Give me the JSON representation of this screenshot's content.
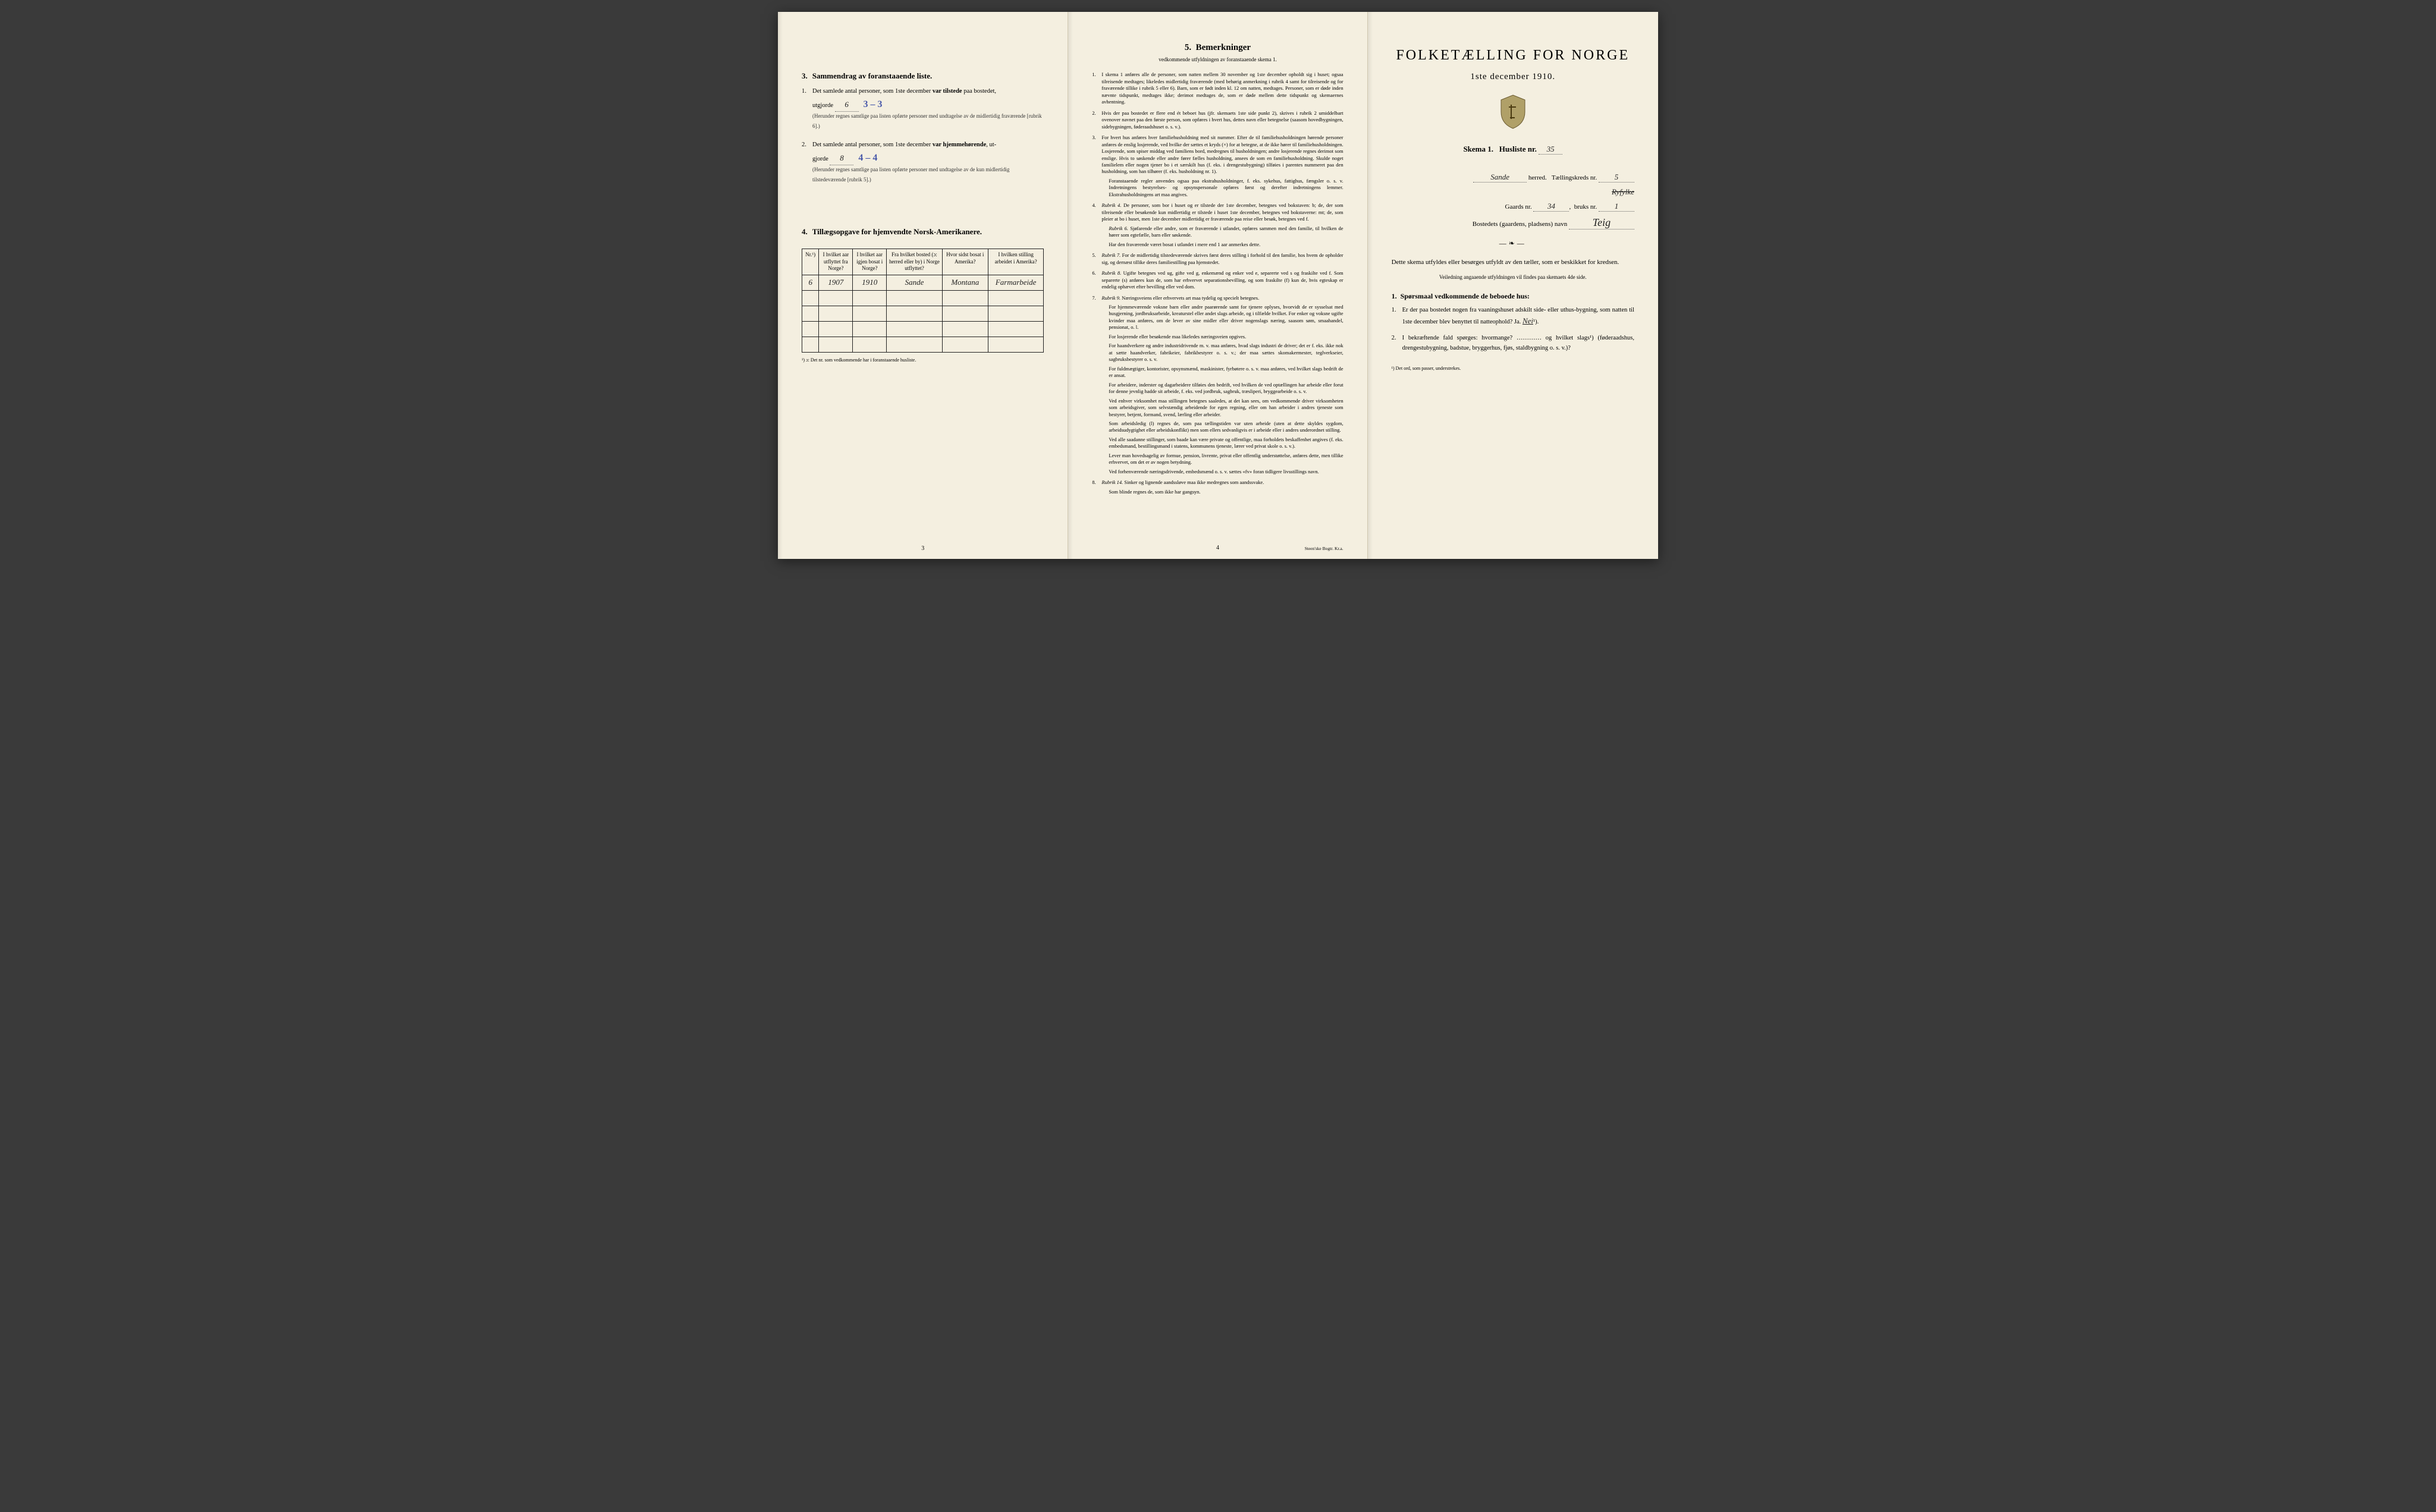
{
  "colors": {
    "paper": "#f4efe0",
    "ink": "#1a1a1a",
    "hand_blue": "#4a5aaa",
    "hand_black": "#222222",
    "border": "#222222",
    "shadow": "#2a2a2a"
  },
  "typography": {
    "body_pt": 10.5,
    "small_pt": 9,
    "title_pt": 24,
    "family": "Georgia / Times serif",
    "hand_family": "cursive script"
  },
  "left": {
    "section3": {
      "num": "3.",
      "title": "Sammendrag av foranstaaende liste.",
      "items": [
        {
          "idx": "1.",
          "text_a": "Det samlede antal personer, som 1ste december ",
          "bold_a": "var tilstede",
          "text_b": " paa bostedet,",
          "line2_a": "utgjorde ",
          "value": "6",
          "value_blue": "3 – 3",
          "paren": "(Herunder regnes samtlige paa listen opførte personer med undtagelse av de midlertidig fraværende [rubrik 6].)"
        },
        {
          "idx": "2.",
          "text_a": "Det samlede antal personer, som 1ste december ",
          "bold_a": "var hjemmehørende",
          "text_b": ", ut-",
          "line2_a": "gjorde ",
          "value": "8",
          "value_blue": "4 – 4",
          "paren": "(Herunder regnes samtlige paa listen opførte personer med undtagelse av de kun midlertidig tilstedeværende [rubrik 5].)"
        }
      ]
    },
    "section4": {
      "num": "4.",
      "title": "Tillægsopgave for hjemvendte Norsk-Amerikanere.",
      "table": {
        "columns": [
          "Nr.¹)",
          "I hvilket aar utflyttet fra Norge?",
          "I hvilket aar igjen bosat i Norge?",
          "Fra hvilket bosted (ɔ: herred eller by) i Norge utflyttet?",
          "Hvor sidst bosat i Amerika?",
          "I hvilken stilling arbeidet i Amerika?"
        ],
        "col_widths_pct": [
          7,
          14,
          14,
          23,
          19,
          23
        ],
        "rows": [
          [
            "6",
            "1907",
            "1910",
            "Sande",
            "Montana",
            "Farmarbeide"
          ],
          [
            "",
            "",
            "",
            "",
            "",
            ""
          ],
          [
            "",
            "",
            "",
            "",
            "",
            ""
          ],
          [
            "",
            "",
            "",
            "",
            "",
            ""
          ],
          [
            "",
            "",
            "",
            "",
            "",
            ""
          ]
        ]
      },
      "footnote": "¹) ɔ: Det nr. som vedkommende har i foranstaaende husliste."
    },
    "page_number": "3"
  },
  "middle": {
    "num": "5.",
    "title": "Bemerkninger",
    "subtitle": "vedkommende utfyldningen av foranstaaende skema 1.",
    "remarks": [
      {
        "n": "1.",
        "text": "I skema 1 anføres alle de personer, som natten mellem 30 november og 1ste december opholdt sig i huset; ogsaa tilreisende medtages; likeledes midlertidig fraværende (med behørig anmerkning i rubrik 4 samt for tilreisende og for fraværende tillike i rubrik 5 eller 6). Barn, som er født inden kl. 12 om natten, medtages. Personer, som er døde inden nævnte tidspunkt, medtages ikke; derimot medtages de, som er døde mellem dette tidspunkt og skemaernes avhentning."
      },
      {
        "n": "2.",
        "text": "Hvis der paa bostedet er flere end ét beboet hus (jfr. skemaets 1ste side punkt 2), skrives i rubrik 2 umiddelbart ovenover navnet paa den første person, som opføres i hvert hus, dettes navn eller betegnelse (saasom hovedbygningen, sidebygningen, føderaadshuset o. s. v.)."
      },
      {
        "n": "3.",
        "text": "For hvert hus anføres hver familiehusholdning med sit nummer. Efter de til familiehusholdningen hørende personer anføres de enslig losjerende, ved hvilke der sættes et kryds (×) for at betegne, at de ikke hører til familiehusholdningen. Losjerende, som spiser middag ved familiens bord, medregnes til husholdningen; andre losjerende regnes derimot som enslige. Hvis to søskende eller andre fører fælles husholdning, ansees de som en familiehusholdning. Skulde noget familielem eller nogen tjener bo i et særskilt hus (f. eks. i drengestubygning) tilføies i parentes nummeret paa den husholdning, som han tilhører (f. eks. husholdning nr. 1).",
        "para2": "Foranstaaende regler anvendes ogsaa paa ekstrahusholdninger, f. eks. sykehus, fattighus, fængsler o. s. v. Indretningens bestyrelses- og opsynspersonale opføres først og derefter indretningens lemmer. Ekstrahusholdningens art maa angives."
      },
      {
        "n": "4.",
        "rubrik": "Rubrik 4.",
        "text": "De personer, som bor i huset og er tilstede der 1ste december, betegnes ved bokstaven: b; de, der som tilreisende eller besøkende kun midlertidig er tilstede i huset 1ste december, betegnes ved bokstaverne: mt; de, som pleier at bo i huset, men 1ste december midlertidig er fraværende paa reise eller besøk, betegnes ved f.",
        "para2_rubrik": "Rubrik 6.",
        "para2": "Sjøfarende eller andre, som er fraværende i utlandet, opføres sammen med den familie, til hvilken de hører som egtefælle, barn eller søskende.",
        "para3": "Har den fraværende været bosat i utlandet i mere end 1 aar anmerkes dette."
      },
      {
        "n": "5.",
        "rubrik": "Rubrik 7.",
        "text": "For de midlertidig tilstedeværende skrives først deres stilling i forhold til den familie, hos hvem de opholder sig, og dernæst tillike deres familiestilling paa hjemstedet."
      },
      {
        "n": "6.",
        "rubrik": "Rubrik 8.",
        "text": "Ugifte betegnes ved ug, gifte ved g, enkemænd og enker ved e, separerte ved s og fraskilte ved f. Som separerte (s) anføres kun de, som har erhvervet separationsbevilling, og som fraskilte (f) kun de, hvis egteskap er endelig ophævet efter bevilling eller ved dom."
      },
      {
        "n": "7.",
        "rubrik": "Rubrik 9.",
        "text": "Næringsveiens eller erhvervets art maa tydelig og specielt betegnes.",
        "paras": [
          "For hjemmeværende voksne barn eller andre paarørende samt for tjenere oplyses, hvorvidt de er sysselsat med husgjerning, jordbruksarbeide, kreaturstel eller andet slags arbeide, og i tilfælde hvilket. For enker og voksne ugifte kvinder maa anføres, om de lever av sine midler eller driver nogenslags næring, saasom søm, smaahandel, pensionat, o. l.",
          "For losjerende eller besøkende maa likeledes næringsveien opgives.",
          "For haandverkere og andre industridrivende m. v. maa anføres, hvad slags industri de driver; det er f. eks. ikke nok at sætte haandverker, fabrikeier, fabrikbestyrer o. s. v.; der maa sættes skomakermester, teglverkseier, sagbruksbestyrer o. s. v.",
          "For fuldmægtiger, kontorister, opsynsmænd, maskinister, fyrbøtere o. s. v. maa anføres, ved hvilket slags bedrift de er ansat.",
          "For arbeidere, inderster og dagarbeidere tilføies den bedrift, ved hvilken de ved optællingen har arbeide eller forut for denne jevnlig hadde sit arbeide, f. eks. ved jordbruk, sagbruk, træsliperi, bryggearbeide o. s. v.",
          "Ved enhver virksomhet maa stillingen betegnes saaledes, at det kan sees, om vedkommende driver virksomheten som arbeidsgiver, som selvstændig arbeidende for egen regning, eller om han arbeider i andres tjeneste som bestyrer, betjent, formand, svend, lærling eller arbeider.",
          "Som arbeidsledig (l) regnes de, som paa tællingstiden var uten arbeide (uten at dette skyldes sygdom, arbeidsudygtighet eller arbeidskonflikt) men som ellers sedvanligvis er i arbeide eller i andres underordnet stilling.",
          "Ved alle saadanne stillinger, som baade kan være private og offentlige, maa forholdets beskaffenhet angives (f. eks. embedsmand, bestillingsmand i statens, kommunens tjeneste, lærer ved privat skole o. s. v.).",
          "Lever man hovedsagelig av formue, pension, livrente, privat eller offentlig understøttelse, anføres dette, men tillike erhvervet, om det er av nogen betydning.",
          "Ved forhenværende næringsdrivende, embedsmænd o. s. v. sættes «fv» foran tidligere livsstillings navn."
        ]
      },
      {
        "n": "8.",
        "rubrik": "Rubrik 14.",
        "text": "Sinker og lignende aandssløve maa ikke medregnes som aandssvake.",
        "para2": "Som blinde regnes de, som ikke har gangsyn."
      }
    ],
    "page_number": "4",
    "printer": "Steen'ske Bogtr. Kr.a."
  },
  "right": {
    "title": "FOLKETÆLLING FOR NORGE",
    "date": "1ste december 1910.",
    "skema_label": "Skema 1.",
    "husliste_label": "Husliste nr.",
    "husliste_value": "35",
    "herred_value": "Sande",
    "herred_strike": "Ryfylke",
    "herred_label": "herred.",
    "krets_label": "Tællingskreds nr.",
    "krets_value": "5",
    "gaards_label": "Gaards nr.",
    "gaards_value": "34",
    "bruks_label": "bruks nr.",
    "bruks_value": "1",
    "bosted_label": "Bostedets (gaardens, pladsens) navn",
    "bosted_value": "Teig",
    "instr": "Dette skema utfyldes eller besørges utfyldt av den tæller, som er beskikket for kredsen.",
    "instr_small": "Veiledning angaaende utfyldningen vil findes paa skemaets 4de side.",
    "q_heading_n": "1.",
    "q_heading": "Spørsmaal vedkommende de beboede hus:",
    "questions": [
      {
        "qi": "1.",
        "text": "Er der paa bostedet nogen fra vaaningshuset adskilt side- eller uthus-bygning, som natten til 1ste december blev benyttet til natteophold?  Ja.  ",
        "answer": "Nei",
        "sup": "¹)."
      },
      {
        "qi": "2.",
        "text": "I bekræftende fald spørges: hvormange? ………… og hvilket slags¹) (føderaadshus, drengestubygning, badstue, bryggerhus, fjøs, staldbygning o. s. v.)?"
      }
    ],
    "footnote": "¹) Det ord, som passer, understrekes."
  }
}
